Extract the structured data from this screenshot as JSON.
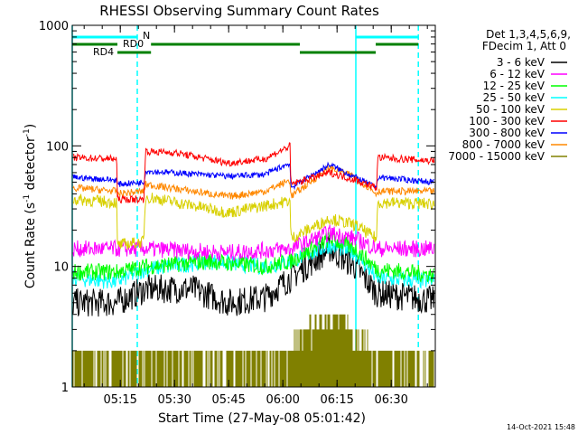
{
  "chart_data": {
    "type": "line",
    "title": "RHESSI Observing Summary Count Rates",
    "xlabel": "Start Time (27-May-08 05:01:42)",
    "ylabel": "Count Rate (s",
    "ylabel_sup1": "-1",
    "ylabel_mid": " detector",
    "ylabel_sup2": "-1",
    "ylabel_end": ")",
    "x_unit": "minutes after 05:00 UT",
    "xlim": [
      1.7,
      102.2
    ],
    "ylim": [
      1,
      1000
    ],
    "yscale": "log",
    "x_ticks": [
      {
        "t": 15,
        "label": "05:15"
      },
      {
        "t": 30,
        "label": "05:30"
      },
      {
        "t": 45,
        "label": "05:45"
      },
      {
        "t": 60,
        "label": "06:00"
      },
      {
        "t": 75,
        "label": "06:15"
      },
      {
        "t": 90,
        "label": "06:30"
      }
    ],
    "y_ticks": [
      {
        "v": 1,
        "label": "1"
      },
      {
        "v": 10,
        "label": "10"
      },
      {
        "v": 100,
        "label": "100"
      },
      {
        "v": 1000,
        "label": "1000"
      }
    ],
    "legend_header": [
      "Det 1,3,4,5,6,9,",
      "FDecim 1, Att 0"
    ],
    "legend_position": "right-outside",
    "series": [
      {
        "name": "3 - 6 keV",
        "color": "#000000",
        "noise": 0.12,
        "points": [
          [
            1.7,
            5
          ],
          [
            14,
            5
          ],
          [
            22,
            6.5
          ],
          [
            35,
            6.5
          ],
          [
            45,
            5
          ],
          [
            55,
            5.5
          ],
          [
            62,
            8
          ],
          [
            73,
            14
          ],
          [
            80,
            10
          ],
          [
            86,
            6
          ],
          [
            102,
            5.2
          ]
        ]
      },
      {
        "name": "6 - 12 keV",
        "color": "#ff00ff",
        "noise": 0.07,
        "points": [
          [
            1.7,
            14
          ],
          [
            14,
            14
          ],
          [
            22,
            14
          ],
          [
            45,
            13
          ],
          [
            62,
            14
          ],
          [
            73,
            19
          ],
          [
            80,
            17
          ],
          [
            86,
            14
          ],
          [
            102,
            14
          ]
        ]
      },
      {
        "name": "12 - 25 keV",
        "color": "#00ff00",
        "noise": 0.07,
        "points": [
          [
            1.7,
            9
          ],
          [
            14,
            9
          ],
          [
            22,
            10
          ],
          [
            40,
            11
          ],
          [
            55,
            10
          ],
          [
            62,
            11
          ],
          [
            73,
            17
          ],
          [
            80,
            14
          ],
          [
            86,
            9.5
          ],
          [
            102,
            8.5
          ]
        ]
      },
      {
        "name": "25 - 50 keV",
        "color": "#00ffff",
        "noise": 0.07,
        "points": [
          [
            1.7,
            8
          ],
          [
            14,
            7.5
          ],
          [
            22,
            9.5
          ],
          [
            40,
            11
          ],
          [
            55,
            10
          ],
          [
            62,
            11
          ],
          [
            73,
            15
          ],
          [
            80,
            13
          ],
          [
            86,
            8
          ],
          [
            102,
            7.5
          ]
        ]
      },
      {
        "name": "50 - 100 keV",
        "color": "#d8d000",
        "noise": 0.05,
        "points": [
          [
            1.7,
            36
          ],
          [
            14,
            34
          ],
          [
            14.2,
            15
          ],
          [
            21.5,
            16
          ],
          [
            22,
            38
          ],
          [
            45,
            28
          ],
          [
            62,
            35
          ],
          [
            62.2,
            17
          ],
          [
            73,
            25
          ],
          [
            80,
            22
          ],
          [
            86,
            17
          ],
          [
            86.2,
            34
          ],
          [
            102,
            33
          ]
        ]
      },
      {
        "name": "100 - 300 keV",
        "color": "#ff0000",
        "noise": 0.03,
        "points": [
          [
            1.7,
            80
          ],
          [
            14,
            78
          ],
          [
            14.2,
            36
          ],
          [
            21.5,
            36
          ],
          [
            22,
            90
          ],
          [
            30,
            88
          ],
          [
            45,
            72
          ],
          [
            55,
            78
          ],
          [
            62,
            100
          ],
          [
            62.2,
            48
          ],
          [
            73,
            60
          ],
          [
            80,
            52
          ],
          [
            86,
            45
          ],
          [
            86.2,
            80
          ],
          [
            102,
            75
          ]
        ]
      },
      {
        "name": "300 - 800 keV",
        "color": "#0000ff",
        "noise": 0.025,
        "points": [
          [
            1.7,
            55
          ],
          [
            14,
            52
          ],
          [
            14.2,
            48
          ],
          [
            21.5,
            50
          ],
          [
            22,
            62
          ],
          [
            45,
            56
          ],
          [
            55,
            58
          ],
          [
            62,
            72
          ],
          [
            62.2,
            45
          ],
          [
            73,
            70
          ],
          [
            80,
            55
          ],
          [
            86,
            45
          ],
          [
            86.2,
            55
          ],
          [
            102,
            50
          ]
        ]
      },
      {
        "name": "800 - 7000 keV",
        "color": "#ff8800",
        "noise": 0.03,
        "points": [
          [
            1.7,
            45
          ],
          [
            14,
            42
          ],
          [
            14.2,
            40
          ],
          [
            21.5,
            42
          ],
          [
            22,
            48
          ],
          [
            45,
            38
          ],
          [
            55,
            42
          ],
          [
            62,
            52
          ],
          [
            62.2,
            38
          ],
          [
            73,
            66
          ],
          [
            80,
            55
          ],
          [
            86,
            40
          ],
          [
            86.2,
            42
          ],
          [
            102,
            42
          ]
        ]
      },
      {
        "name": "7000 - 15000 keV",
        "color": "#808000",
        "noise": 0.0,
        "points": [
          [
            1.7,
            1.5
          ],
          [
            20,
            1.5
          ],
          [
            30,
            1.5
          ],
          [
            55,
            1.4
          ],
          [
            62,
            2
          ],
          [
            68,
            3
          ],
          [
            73,
            4
          ],
          [
            80,
            3
          ],
          [
            86,
            1.5
          ],
          [
            102,
            1.5
          ]
        ]
      }
    ],
    "annotations": {
      "night_label": "N",
      "rd0_label": "RD0",
      "rd4_label": "RD4",
      "night_intervals": [
        [
          1.7,
          19.7
        ],
        [
          80.2,
          97.5
        ]
      ],
      "rd0_intervals": [
        [
          1.7,
          14.2
        ],
        [
          23.5,
          64.7
        ],
        [
          85.7,
          97.5
        ]
      ],
      "rd4_intervals": [
        [
          14.2,
          23.5
        ],
        [
          64.7,
          85.7
        ]
      ],
      "saa_solid_lines": [
        1.7,
        80.2
      ],
      "saa_dashed_lines": [
        19.7,
        97.5
      ]
    }
  },
  "footer_timestamp": "14-Oct-2021 15:48",
  "colors": {
    "night": "#00ffff",
    "rd": "#008000"
  }
}
